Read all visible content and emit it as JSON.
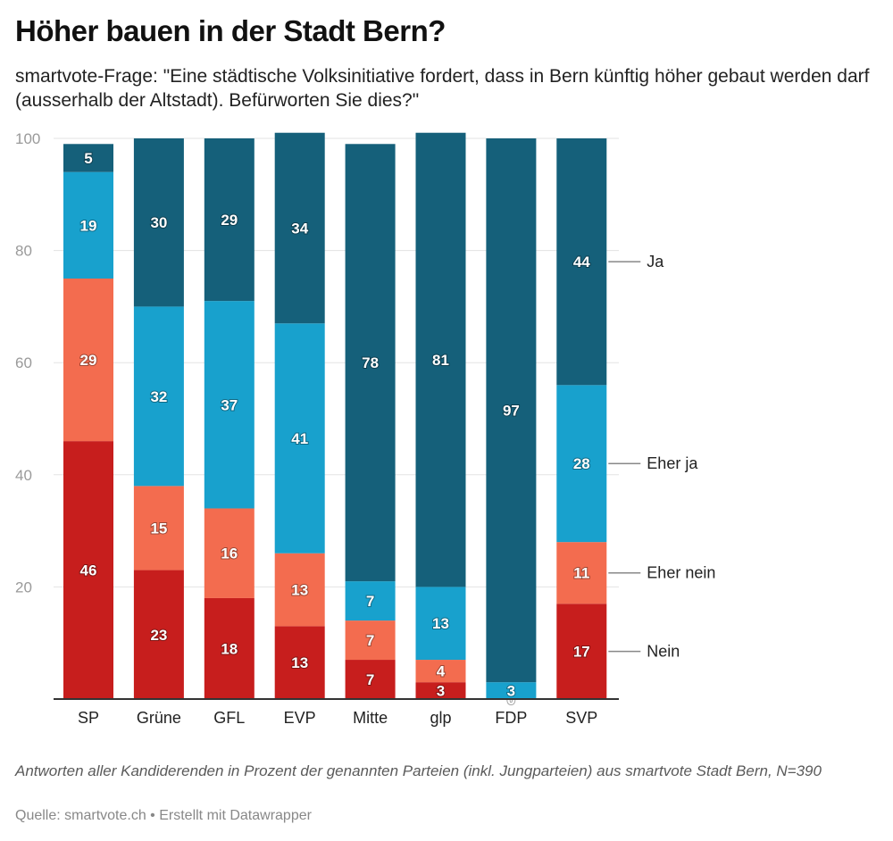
{
  "header": {
    "title": "Höher bauen in der Stadt Bern?",
    "subtitle": "smartvote-Frage: \"Eine städtische Volksinitiative fordert, dass in Bern künftig höher gebaut werden darf (ausserhalb der Altstadt). Befürworten Sie dies?\""
  },
  "footer": {
    "notes": "Antworten aller Kandiderenden in Prozent der genannten Parteien (inkl. Jungparteien) aus smartvote Stadt Bern, N=390",
    "source": "Quelle: smartvote.ch • Erstellt mit Datawrapper"
  },
  "chart_data": {
    "type": "bar",
    "stacked": true,
    "title": "Höher bauen in der Stadt Bern?",
    "xlabel": "",
    "ylabel": "",
    "ylim": [
      0,
      100
    ],
    "yticks": [
      20,
      40,
      60,
      80,
      100
    ],
    "grid": true,
    "legend": "right (inline labels)",
    "categories": [
      "SP",
      "Grüne",
      "GFL",
      "EVP",
      "Mitte",
      "glp",
      "FDP",
      "SVP"
    ],
    "series": [
      {
        "name": "Nein",
        "color": "#c71e1d",
        "values": [
          46,
          23,
          18,
          13,
          7,
          3,
          0,
          17
        ]
      },
      {
        "name": "Eher nein",
        "color": "#f36c4f",
        "values": [
          29,
          15,
          16,
          13,
          7,
          4,
          0,
          11
        ]
      },
      {
        "name": "Eher ja",
        "color": "#18a1cd",
        "values": [
          19,
          32,
          37,
          41,
          7,
          13,
          3,
          28
        ]
      },
      {
        "name": "Ja",
        "color": "#15607a",
        "values": [
          5,
          30,
          29,
          34,
          78,
          81,
          97,
          44
        ]
      }
    ],
    "value_labels_shown": {
      "Nein": [
        true,
        true,
        true,
        true,
        true,
        true,
        true,
        true
      ],
      "Eher nein": [
        true,
        true,
        true,
        true,
        true,
        true,
        false,
        true
      ],
      "Eher ja": [
        true,
        true,
        true,
        true,
        true,
        true,
        true,
        true
      ],
      "Ja": [
        true,
        true,
        true,
        true,
        true,
        true,
        true,
        true
      ]
    }
  }
}
